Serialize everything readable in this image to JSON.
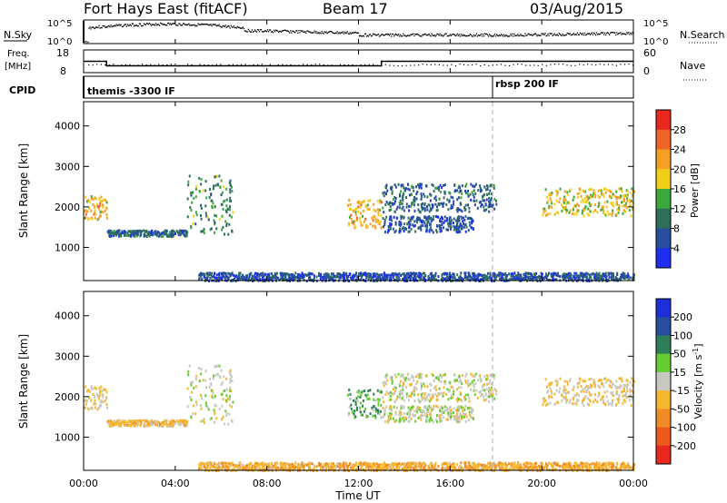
{
  "header": {
    "station": "Fort Hays East (fitACF)",
    "beam": "Beam 17",
    "date": "03/Aug/2015"
  },
  "top_panels": {
    "nsky_label": "N.Sky",
    "nsearch_label": "N.Search",
    "nsky_ticks": [
      "10^5",
      "10^0"
    ],
    "nsearch_ticks": [
      "10^5",
      "10^0"
    ],
    "freq_label": "Freq.",
    "freq_unit": "[MHz]",
    "freq_ticks": [
      "18",
      "8"
    ],
    "nave_label": "Nave",
    "nave_ticks": [
      "60",
      "0"
    ],
    "cpid_label": "CPID",
    "cpid_segments": [
      {
        "label": "themis -3300 IF",
        "start_hour": 0
      },
      {
        "label": "rbsp 200 IF",
        "start_hour": 18
      }
    ]
  },
  "axes": {
    "ylabel": "Slant Range [km]",
    "xlabel": "Time UT",
    "y_ticks": [
      "4000",
      "3000",
      "2000",
      "1000"
    ],
    "x_ticks": [
      "00:00",
      "04:00",
      "08:00",
      "12:00",
      "16:00",
      "20:00",
      "00:00"
    ]
  },
  "power_colorbar": {
    "label": "Power [dB]",
    "ticks": [
      "28",
      "24",
      "20",
      "16",
      "12",
      "8",
      "4"
    ],
    "colors": [
      "#e8281e",
      "#f0642a",
      "#f5a022",
      "#f2cf1a",
      "#3ca83c",
      "#2f6e5a",
      "#264e9c",
      "#1e2ff0"
    ]
  },
  "velocity_colorbar": {
    "label": "Velocity [m s",
    "label_sup": "-1",
    "label_close": "]",
    "ticks": [
      "200",
      "100",
      "50",
      "15",
      "-15",
      "-50",
      "-100",
      "-200"
    ],
    "colors": [
      "#1e2fd8",
      "#264e9c",
      "#2f7e5a",
      "#66cc33",
      "#c8c8c0",
      "#f5b730",
      "#f08c25",
      "#ec5a1e",
      "#e8281e"
    ]
  },
  "chart_data": {
    "type": "heatmap",
    "x_range_hours": [
      0,
      24
    ],
    "y_range_km": [
      180,
      4600
    ],
    "x_tick_hours": [
      0,
      4,
      8,
      12,
      16,
      20,
      24
    ],
    "y_tick_km": [
      1000,
      2000,
      3000,
      4000
    ],
    "dashed_marker_hour": 18,
    "frequency_steps": [
      {
        "from_hour": 0,
        "to_hour": 1,
        "mhz": 13
      },
      {
        "from_hour": 1,
        "to_hour": 13,
        "mhz": 11
      },
      {
        "from_hour": 13,
        "to_hour": 24,
        "mhz": 13
      }
    ],
    "echo_regions": [
      {
        "name": "early band",
        "t0": 0,
        "t1": 1,
        "r0": 1700,
        "r1": 2300,
        "power_db": 20,
        "velocity": -15
      },
      {
        "name": "1400 km band",
        "t0": 1,
        "t1": 4.5,
        "r0": 1300,
        "r1": 1450,
        "power_db": 8,
        "velocity": -30
      },
      {
        "name": "rising arc",
        "t0": 4.5,
        "t1": 6.5,
        "r0": 1300,
        "r1": 2800,
        "power_db": 12,
        "velocity": 0
      },
      {
        "name": "near range",
        "t0": 5,
        "t1": 24,
        "r0": 200,
        "r1": 400,
        "power_db": 6,
        "velocity": -40
      },
      {
        "name": "descending band",
        "t0": 11.5,
        "t1": 13,
        "r0": 1500,
        "r1": 2200,
        "power_db": 20,
        "velocity": 30
      },
      {
        "name": "afternoon band",
        "t0": 13,
        "t1": 18,
        "r0": 1900,
        "r1": 2600,
        "power_db": 8,
        "velocity": 0
      },
      {
        "name": "mid band",
        "t0": 13,
        "t1": 17,
        "r0": 1400,
        "r1": 1800,
        "power_db": 6,
        "velocity": 0
      },
      {
        "name": "evening band",
        "t0": 20,
        "t1": 24,
        "r0": 1800,
        "r1": 2500,
        "power_db": 18,
        "velocity": -15
      }
    ]
  }
}
